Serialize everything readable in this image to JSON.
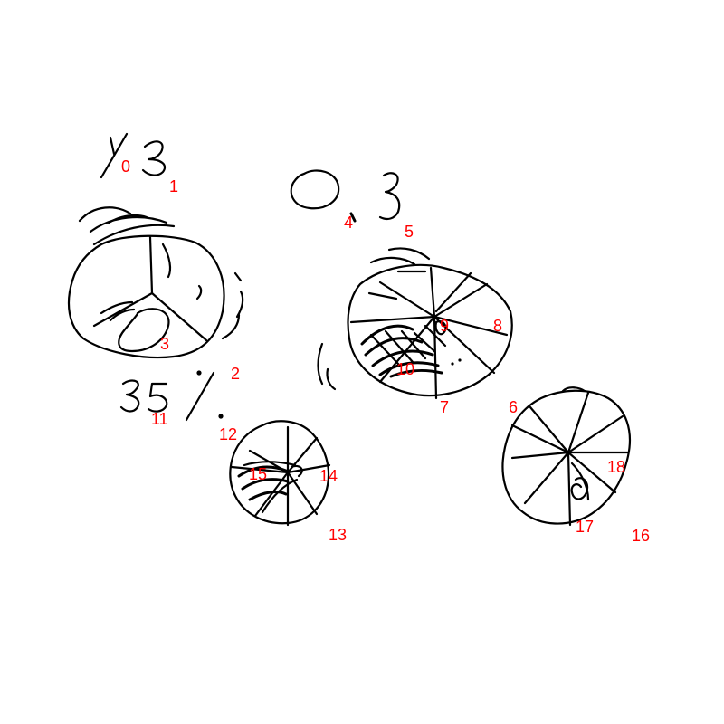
{
  "stroke_color": "#000000",
  "label_color": "#ff0000",
  "handwritten": {
    "fraction": "1/3",
    "decimal": "0.3",
    "percent": "35%"
  },
  "labels": [
    "0",
    "1",
    "2",
    "3",
    "4",
    "5",
    "6",
    "7",
    "8",
    "9",
    "10",
    "11",
    "12",
    "13",
    "14",
    "15",
    "16",
    "17",
    "18"
  ],
  "pies": [
    {
      "name": "pie-large-left",
      "slices": 3,
      "shaded_slices": 1
    },
    {
      "name": "pie-middle-right",
      "slices": 8,
      "shaded_slices": 3
    },
    {
      "name": "pie-small-bottom",
      "slices": 8,
      "shaded_slices": 3
    },
    {
      "name": "pie-right",
      "slices": 10,
      "shaded_slices": 1
    }
  ]
}
